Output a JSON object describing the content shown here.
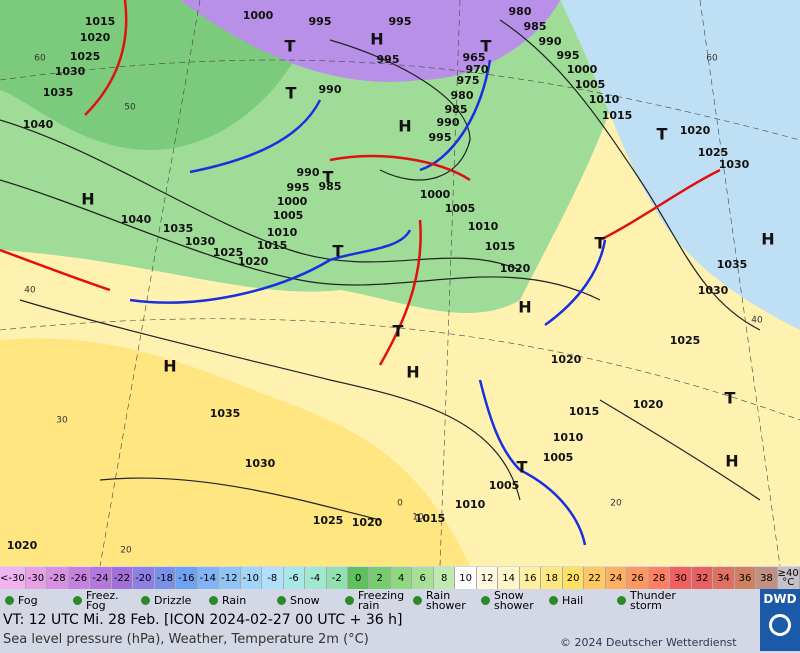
{
  "map": {
    "isobar_labels": [
      1015,
      1020,
      1025,
      1030,
      1035,
      1040,
      1000,
      995,
      995,
      995,
      990,
      995,
      1000,
      1005,
      1010,
      1015,
      990,
      990,
      995,
      1000,
      1005,
      1010,
      1015,
      1020,
      1025,
      1030,
      1035,
      1040,
      985,
      1000,
      1005,
      1010,
      1015,
      1020,
      965,
      970,
      975,
      980,
      985,
      990,
      995,
      980,
      985,
      1020,
      1025,
      1030,
      1035,
      1030,
      1025,
      1020,
      1020,
      1015,
      1010,
      1005,
      1005,
      1010,
      1015,
      1020,
      1025,
      1035,
      1030,
      1020
    ],
    "centers": [
      "H",
      "H",
      "H",
      "H",
      "H",
      "H",
      "H",
      "H",
      "T",
      "T",
      "T",
      "T",
      "T",
      "T",
      "T",
      "T",
      "T",
      "T"
    ],
    "temperature_labels": [
      60,
      50,
      40,
      30,
      20,
      60,
      40,
      20,
      0,
      10
    ]
  },
  "scale": {
    "labels": [
      "<-30",
      -30,
      -28,
      -26,
      -24,
      -22,
      -20,
      -18,
      -16,
      -14,
      -12,
      -10,
      -8,
      -6,
      -4,
      -2,
      0,
      2,
      4,
      6,
      8,
      10,
      12,
      14,
      16,
      18,
      20,
      22,
      24,
      26,
      28,
      30,
      32,
      34,
      36,
      38,
      "≥40 °C"
    ],
    "colors": [
      "#f0b4f0",
      "#e6a0e6",
      "#d890e0",
      "#c880e0",
      "#b478dc",
      "#a070d8",
      "#8c80e4",
      "#7890e8",
      "#70a0f0",
      "#80b4f4",
      "#90c4f4",
      "#a0d4f8",
      "#b0e0fa",
      "#a8e8e8",
      "#a0e8d0",
      "#90e0b0",
      "#60c060",
      "#78cc70",
      "#90d880",
      "#a8e098",
      "#c0eab0",
      "#ffffff",
      "#fffae0",
      "#fff6c8",
      "#fff0a0",
      "#ffe880",
      "#ffe060",
      "#ffc860",
      "#ffb060",
      "#ff9860",
      "#ff8060",
      "#f06060",
      "#e86060",
      "#e07060",
      "#d08060",
      "#c09080",
      "#c8c0c8"
    ]
  },
  "legend": [
    "Fog",
    "Freez. Fog",
    "Drizzle",
    "Rain",
    "Snow",
    "Freezing rain",
    "Rain shower",
    "Snow shower",
    "Hail",
    "Thunder storm"
  ],
  "footer": {
    "valid_time": "VT: 12 UTC Mi.  28 Feb. [ICON 2024-02-27  00 UTC + 36 h]",
    "description": "Sea level pressure (hPa), Weather, Temperature 2m (°C)",
    "copyright": "© 2024 Deutscher Wetterdienst",
    "logo": "DWD"
  }
}
